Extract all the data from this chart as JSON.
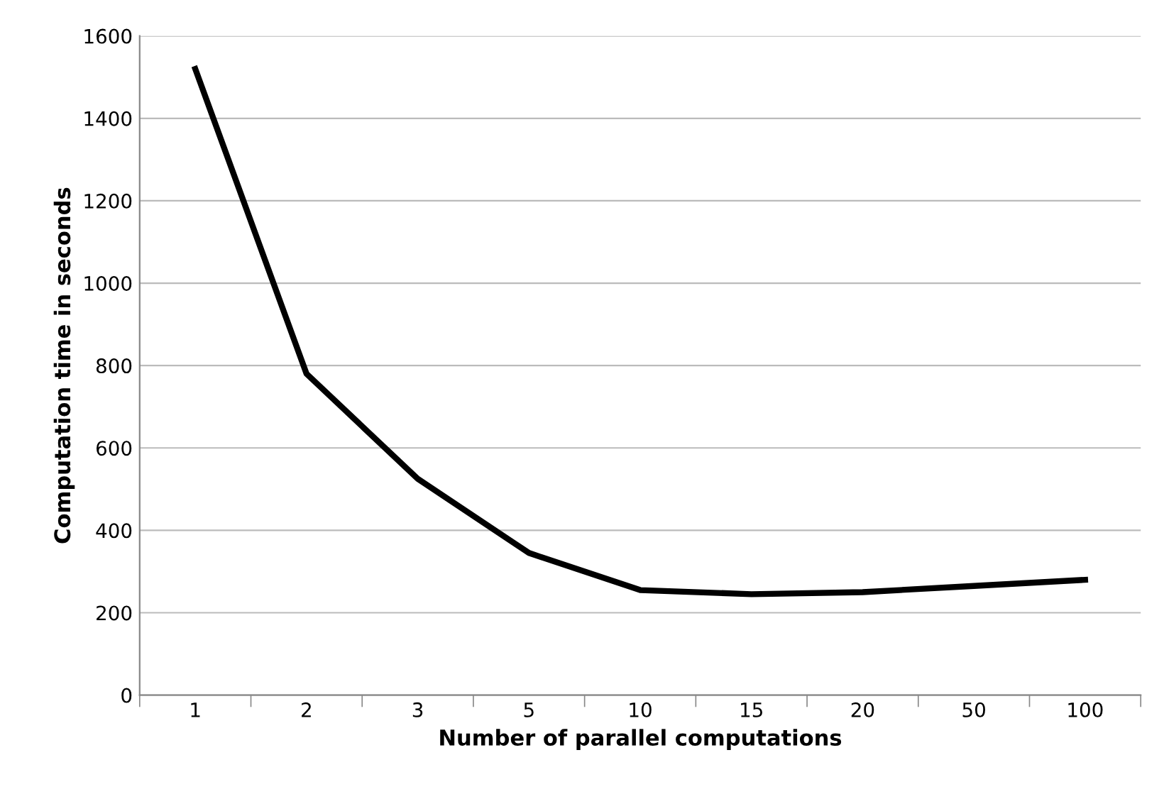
{
  "chart_data": {
    "type": "line",
    "xlabel": "Number of parallel computations",
    "ylabel": "Computation time in seconds",
    "categories": [
      "1",
      "2",
      "3",
      "5",
      "10",
      "15",
      "20",
      "50",
      "100"
    ],
    "series": [
      {
        "color": "#000000",
        "values": [
          1520,
          780,
          525,
          345,
          255,
          245,
          250,
          265,
          280
        ]
      }
    ],
    "ylim": [
      0,
      1600
    ],
    "yticks": [
      0,
      200,
      400,
      600,
      800,
      1000,
      1200,
      1400,
      1600
    ],
    "grid": "y",
    "legend": false,
    "marker": "none",
    "line_style": "solid"
  }
}
